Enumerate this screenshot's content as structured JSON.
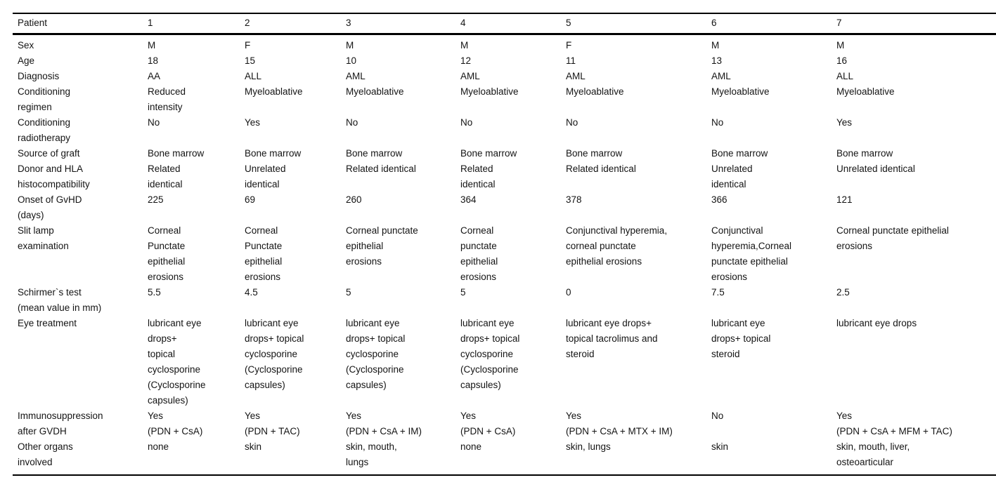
{
  "table": {
    "header_label": "Patient",
    "columns": [
      "1",
      "2",
      "3",
      "4",
      "5",
      "6",
      "7"
    ],
    "rows": [
      {
        "label": "Sex",
        "values": [
          "M",
          "F",
          "M",
          "M",
          "F",
          "M",
          "M"
        ]
      },
      {
        "label": "Age",
        "values": [
          "18",
          "15",
          "10",
          "12",
          "11",
          "13",
          "16"
        ]
      },
      {
        "label": "Diagnosis",
        "values": [
          "AA",
          "ALL",
          "AML",
          "AML",
          "AML",
          "AML",
          "ALL"
        ]
      },
      {
        "label": "Conditioning\nregimen",
        "values": [
          "Reduced\nintensity",
          "Myeloablative",
          "Myeloablative",
          "Myeloablative",
          "Myeloablative",
          "Myeloablative",
          "Myeloablative"
        ]
      },
      {
        "label": "Conditioning\nradiotherapy",
        "values": [
          "No",
          "Yes",
          "No",
          "No",
          "No",
          "No",
          "Yes"
        ]
      },
      {
        "label": "Source of graft",
        "values": [
          "Bone marrow",
          "Bone marrow",
          "Bone marrow",
          "Bone marrow",
          "Bone marrow",
          "Bone marrow",
          "Bone marrow"
        ]
      },
      {
        "label": "Donor and HLA\nhistocompatibility",
        "values": [
          "Related\nidentical",
          "Unrelated\nidentical",
          "Related identical",
          "Related\nidentical",
          "Related identical",
          "Unrelated\nidentical",
          "Unrelated identical"
        ]
      },
      {
        "label": "Onset of GvHD\n(days)",
        "values": [
          "225",
          "69",
          "260",
          "364",
          "378",
          "366",
          "121"
        ]
      },
      {
        "label": "Slit lamp\nexamination",
        "values": [
          "Corneal\nPunctate\nepithelial\nerosions",
          "Corneal\nPunctate\nepithelial\nerosions",
          "Corneal punctate\nepithelial\nerosions",
          "Corneal\npunctate\nepithelial\nerosions",
          "Conjunctival hyperemia,\ncorneal punctate\nepithelial erosions",
          "Conjunctival\nhyperemia,Corneal\npunctate epithelial\nerosions",
          "Corneal punctate epithelial\nerosions"
        ]
      },
      {
        "label": "Schirmer`s test\n(mean value in mm)",
        "values": [
          "5.5",
          "4.5",
          "5",
          "5",
          "0",
          "7.5",
          "2.5"
        ]
      },
      {
        "label": "Eye treatment",
        "values": [
          "lubricant eye\ndrops+\ntopical\ncyclosporine\n(Cyclosporine\ncapsules)",
          "lubricant eye\ndrops+ topical\ncyclosporine\n(Cyclosporine\ncapsules)",
          "lubricant eye\ndrops+ topical\ncyclosporine\n(Cyclosporine\ncapsules)",
          "lubricant eye\ndrops+ topical\ncyclosporine\n(Cyclosporine\ncapsules)",
          "lubricant eye drops+\ntopical tacrolimus and\nsteroid",
          "lubricant eye\ndrops+ topical\nsteroid",
          "lubricant eye drops"
        ]
      },
      {
        "label": "Immunosuppression\nafter GVDH",
        "values": [
          "Yes\n(PDN + CsA)",
          "Yes\n(PDN + TAC)",
          "Yes\n(PDN + CsA + IM)",
          "Yes\n(PDN + CsA)",
          "Yes\n(PDN + CsA + MTX + IM)",
          "No",
          "Yes\n(PDN + CsA + MFM + TAC)"
        ]
      },
      {
        "label": "Other organs\ninvolved",
        "values": [
          "none",
          "skin",
          "skin, mouth,\nlungs",
          "none",
          "skin, lungs",
          "skin",
          "skin, mouth, liver,\nosteoarticular"
        ]
      }
    ]
  },
  "style": {
    "text_color": "#141414",
    "background_color": "#ffffff",
    "rule_color": "#000000"
  }
}
